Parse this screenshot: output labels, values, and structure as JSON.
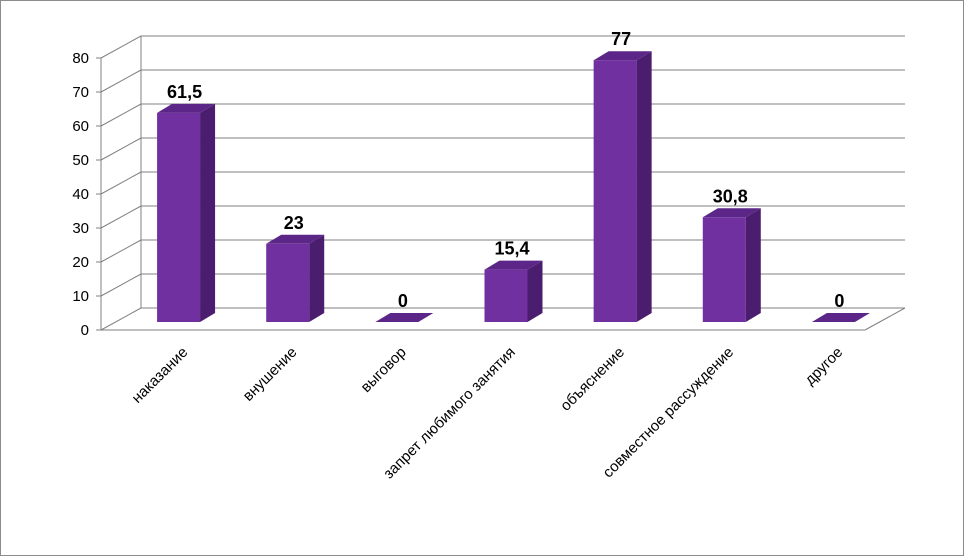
{
  "chart_data": {
    "type": "bar",
    "style": "3d-column",
    "categories": [
      "наказание",
      "внушение",
      "выговор",
      "запрет любимого занятия",
      "объяснение",
      "совместное рассуждение",
      "другое"
    ],
    "values": [
      61.5,
      23,
      0,
      15.4,
      77,
      30.8,
      0
    ],
    "data_labels": [
      "61,5",
      "23",
      "0",
      "15,4",
      "77",
      "30,8",
      "0"
    ],
    "ylim": [
      0,
      80
    ],
    "yticks": [
      0,
      10,
      20,
      30,
      40,
      50,
      60,
      70,
      80
    ],
    "grid": true,
    "legend": "none",
    "colors": {
      "bar_front": "#7030a0",
      "bar_side": "#4a1d6e",
      "bar_top": "#5c2688",
      "grid": "#808080"
    }
  }
}
